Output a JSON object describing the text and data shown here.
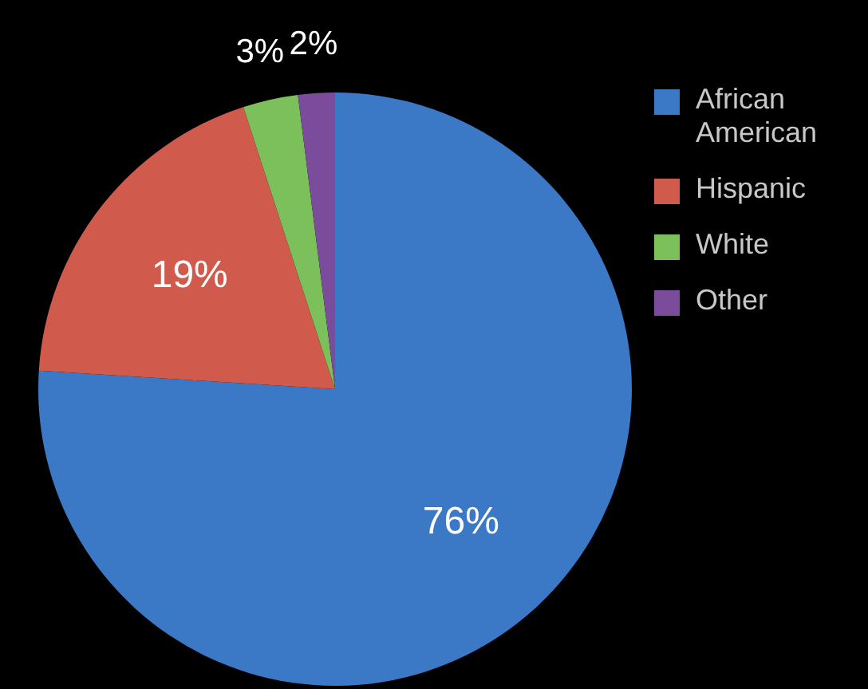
{
  "chart_data": {
    "type": "pie",
    "categories": [
      "African American",
      "Hispanic",
      "White",
      "Other"
    ],
    "values": [
      76,
      19,
      3,
      2
    ],
    "colors": [
      "#3b78c6",
      "#d05a4c",
      "#7cc05c",
      "#7b4c9c"
    ],
    "value_labels": [
      "76%",
      "19%",
      "3%",
      "2%"
    ],
    "legend": "right"
  }
}
